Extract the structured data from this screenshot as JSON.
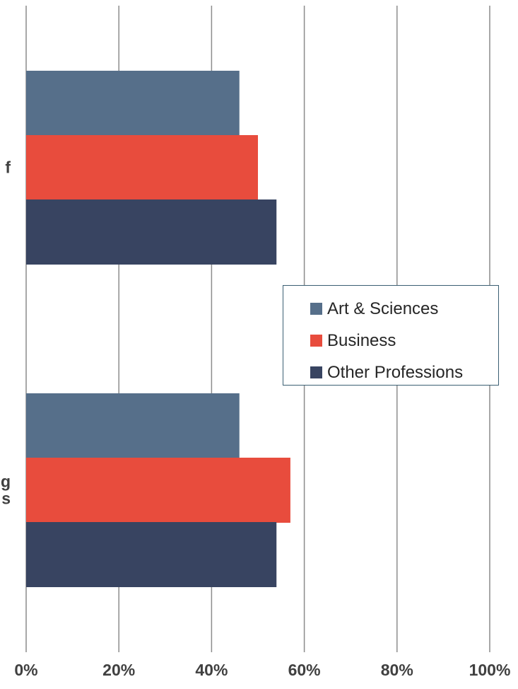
{
  "chart_data": {
    "type": "bar",
    "orientation": "horizontal",
    "categories": [
      "f",
      "g\ns"
    ],
    "series": [
      {
        "name": "Art & Sciences",
        "values": [
          46,
          46
        ],
        "color": "#566f8a"
      },
      {
        "name": "Business",
        "values": [
          50,
          57
        ],
        "color": "#e84c3d"
      },
      {
        "name": "Other Professions",
        "values": [
          54,
          54
        ],
        "color": "#384461"
      }
    ],
    "xlim": [
      0,
      100
    ],
    "x_ticks": [
      "0%",
      "20%",
      "40%",
      "60%",
      "80%",
      "100%"
    ],
    "grid": true,
    "legend_position": "right-middle",
    "title": "",
    "xlabel": "",
    "ylabel": ""
  }
}
